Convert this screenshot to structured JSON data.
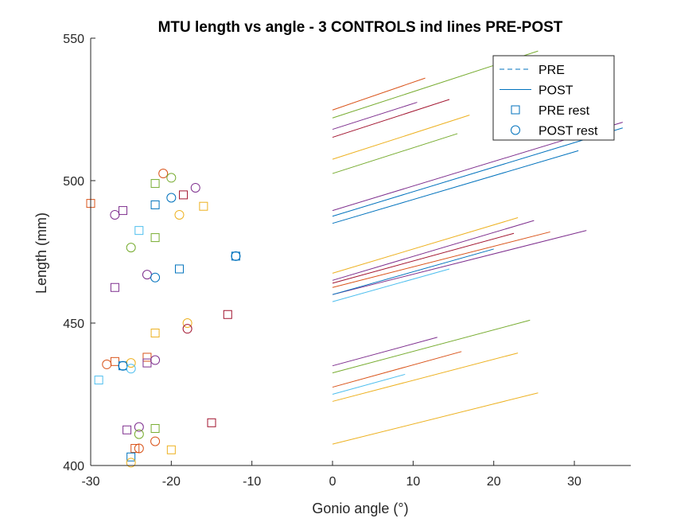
{
  "chart_data": {
    "type": "scatter",
    "title": "MTU length vs angle - 3 CONTROLS ind lines PRE-POST",
    "xlabel": "Gonio angle (°)",
    "ylabel": "Length (mm)",
    "xlim": [
      -30,
      37
    ],
    "ylim": [
      400,
      550
    ],
    "xticks": [
      -30,
      -20,
      -10,
      0,
      10,
      20,
      30
    ],
    "yticks": [
      400,
      450,
      500,
      550
    ],
    "grid": false,
    "legend_position": "top-right",
    "legend": [
      {
        "label": "PRE",
        "marker": "dashed-line"
      },
      {
        "label": "POST",
        "marker": "solid-line"
      },
      {
        "label": "PRE rest",
        "marker": "square"
      },
      {
        "label": "POST rest",
        "marker": "circle"
      }
    ],
    "palette": {
      "blue": "#0072BD",
      "orange": "#D95319",
      "yellow": "#EDB120",
      "purple": "#7E2F8E",
      "green": "#77AC30",
      "cyan": "#4DBEEE",
      "maroon": "#A2142F"
    },
    "lines": [
      {
        "color": "#D95319",
        "x": [
          0,
          11.5
        ],
        "y": [
          524.8,
          536.0
        ]
      },
      {
        "color": "#77AC30",
        "x": [
          0,
          25.5
        ],
        "y": [
          522.0,
          545.5
        ]
      },
      {
        "color": "#7E2F8E",
        "x": [
          0,
          10.5
        ],
        "y": [
          518.0,
          527.5
        ]
      },
      {
        "color": "#A2142F",
        "x": [
          0,
          14.5
        ],
        "y": [
          515.2,
          528.5
        ]
      },
      {
        "color": "#EDB120",
        "x": [
          0,
          17.0
        ],
        "y": [
          507.5,
          523.0
        ]
      },
      {
        "color": "#77AC30",
        "x": [
          0,
          15.5
        ],
        "y": [
          502.5,
          516.5
        ]
      },
      {
        "color": "#7E2F8E",
        "x": [
          0,
          36.0
        ],
        "y": [
          489.5,
          520.5
        ]
      },
      {
        "color": "#0072BD",
        "x": [
          0,
          36.0
        ],
        "y": [
          487.5,
          518.5
        ]
      },
      {
        "color": "#0072BD",
        "x": [
          0,
          30.5
        ],
        "y": [
          485.0,
          510.5
        ]
      },
      {
        "color": "#EDB120",
        "x": [
          0,
          23.0
        ],
        "y": [
          467.5,
          487.0
        ]
      },
      {
        "color": "#7E2F8E",
        "x": [
          0,
          25.0
        ],
        "y": [
          465.0,
          486.0
        ]
      },
      {
        "color": "#D95319",
        "x": [
          0,
          27.0
        ],
        "y": [
          462.5,
          482.0
        ]
      },
      {
        "color": "#A2142F",
        "x": [
          0,
          22.5
        ],
        "y": [
          464.0,
          481.5
        ]
      },
      {
        "color": "#7E2F8E",
        "x": [
          0,
          31.5
        ],
        "y": [
          460.0,
          482.5
        ]
      },
      {
        "color": "#0072BD",
        "x": [
          0,
          20.0
        ],
        "y": [
          460.0,
          476.0
        ]
      },
      {
        "color": "#4DBEEE",
        "x": [
          0,
          14.5
        ],
        "y": [
          457.5,
          469.0
        ]
      },
      {
        "color": "#7E2F8E",
        "x": [
          0,
          13.0
        ],
        "y": [
          435.0,
          445.0
        ]
      },
      {
        "color": "#77AC30",
        "x": [
          0,
          24.5
        ],
        "y": [
          432.5,
          451.0
        ]
      },
      {
        "color": "#D95319",
        "x": [
          0,
          16.0
        ],
        "y": [
          427.5,
          440.0
        ]
      },
      {
        "color": "#4DBEEE",
        "x": [
          0,
          9.0
        ],
        "y": [
          425.0,
          432.0
        ]
      },
      {
        "color": "#EDB120",
        "x": [
          0,
          23.0
        ],
        "y": [
          422.5,
          439.5
        ]
      },
      {
        "color": "#EDB120",
        "x": [
          0,
          25.5
        ],
        "y": [
          407.5,
          425.5
        ]
      }
    ],
    "pre_rest": [
      {
        "x": -30.0,
        "y": 492.0,
        "color": "#D95319"
      },
      {
        "x": -26.0,
        "y": 489.5,
        "color": "#7E2F8E"
      },
      {
        "x": -22.0,
        "y": 499.0,
        "color": "#77AC30"
      },
      {
        "x": -22.0,
        "y": 491.5,
        "color": "#0072BD"
      },
      {
        "x": -18.5,
        "y": 495.0,
        "color": "#A2142F"
      },
      {
        "x": -16.0,
        "y": 491.0,
        "color": "#EDB120"
      },
      {
        "x": -24.0,
        "y": 482.5,
        "color": "#4DBEEE"
      },
      {
        "x": -22.0,
        "y": 480.0,
        "color": "#77AC30"
      },
      {
        "x": -19.0,
        "y": 469.0,
        "color": "#0072BD"
      },
      {
        "x": -12.0,
        "y": 473.5,
        "color": "#0072BD"
      },
      {
        "x": -27.0,
        "y": 462.5,
        "color": "#7E2F8E"
      },
      {
        "x": -13.0,
        "y": 453.0,
        "color": "#A2142F"
      },
      {
        "x": -22.0,
        "y": 446.5,
        "color": "#EDB120"
      },
      {
        "x": -23.0,
        "y": 438.0,
        "color": "#D95319"
      },
      {
        "x": -23.0,
        "y": 436.0,
        "color": "#7E2F8E"
      },
      {
        "x": -27.0,
        "y": 436.5,
        "color": "#D95319"
      },
      {
        "x": -26.0,
        "y": 435.0,
        "color": "#0072BD"
      },
      {
        "x": -29.0,
        "y": 430.0,
        "color": "#4DBEEE"
      },
      {
        "x": -15.0,
        "y": 415.0,
        "color": "#A2142F"
      },
      {
        "x": -22.0,
        "y": 413.0,
        "color": "#77AC30"
      },
      {
        "x": -25.5,
        "y": 412.5,
        "color": "#7E2F8E"
      },
      {
        "x": -24.5,
        "y": 406.0,
        "color": "#D95319"
      },
      {
        "x": -20.0,
        "y": 405.5,
        "color": "#EDB120"
      },
      {
        "x": -25.0,
        "y": 403.0,
        "color": "#0072BD"
      }
    ],
    "post_rest": [
      {
        "x": -21.0,
        "y": 502.5,
        "color": "#D95319"
      },
      {
        "x": -20.0,
        "y": 501.0,
        "color": "#77AC30"
      },
      {
        "x": -17.0,
        "y": 497.5,
        "color": "#7E2F8E"
      },
      {
        "x": -20.0,
        "y": 494.0,
        "color": "#0072BD"
      },
      {
        "x": -19.0,
        "y": 488.0,
        "color": "#EDB120"
      },
      {
        "x": -27.0,
        "y": 488.0,
        "color": "#7E2F8E"
      },
      {
        "x": -25.0,
        "y": 476.5,
        "color": "#77AC30"
      },
      {
        "x": -12.0,
        "y": 473.5,
        "color": "#0072BD"
      },
      {
        "x": -23.0,
        "y": 467.0,
        "color": "#7E2F8E"
      },
      {
        "x": -22.0,
        "y": 466.0,
        "color": "#0072BD"
      },
      {
        "x": -18.0,
        "y": 450.0,
        "color": "#EDB120"
      },
      {
        "x": -18.0,
        "y": 448.0,
        "color": "#A2142F"
      },
      {
        "x": -22.0,
        "y": 437.0,
        "color": "#7E2F8E"
      },
      {
        "x": -25.0,
        "y": 436.0,
        "color": "#EDB120"
      },
      {
        "x": -28.0,
        "y": 435.5,
        "color": "#D95319"
      },
      {
        "x": -26.0,
        "y": 435.0,
        "color": "#0072BD"
      },
      {
        "x": -25.0,
        "y": 434.0,
        "color": "#4DBEEE"
      },
      {
        "x": -24.0,
        "y": 413.5,
        "color": "#7E2F8E"
      },
      {
        "x": -24.0,
        "y": 411.0,
        "color": "#77AC30"
      },
      {
        "x": -22.0,
        "y": 408.5,
        "color": "#D95319"
      },
      {
        "x": -24.0,
        "y": 406.0,
        "color": "#D95319"
      },
      {
        "x": -25.0,
        "y": 401.0,
        "color": "#EDB120"
      }
    ]
  }
}
